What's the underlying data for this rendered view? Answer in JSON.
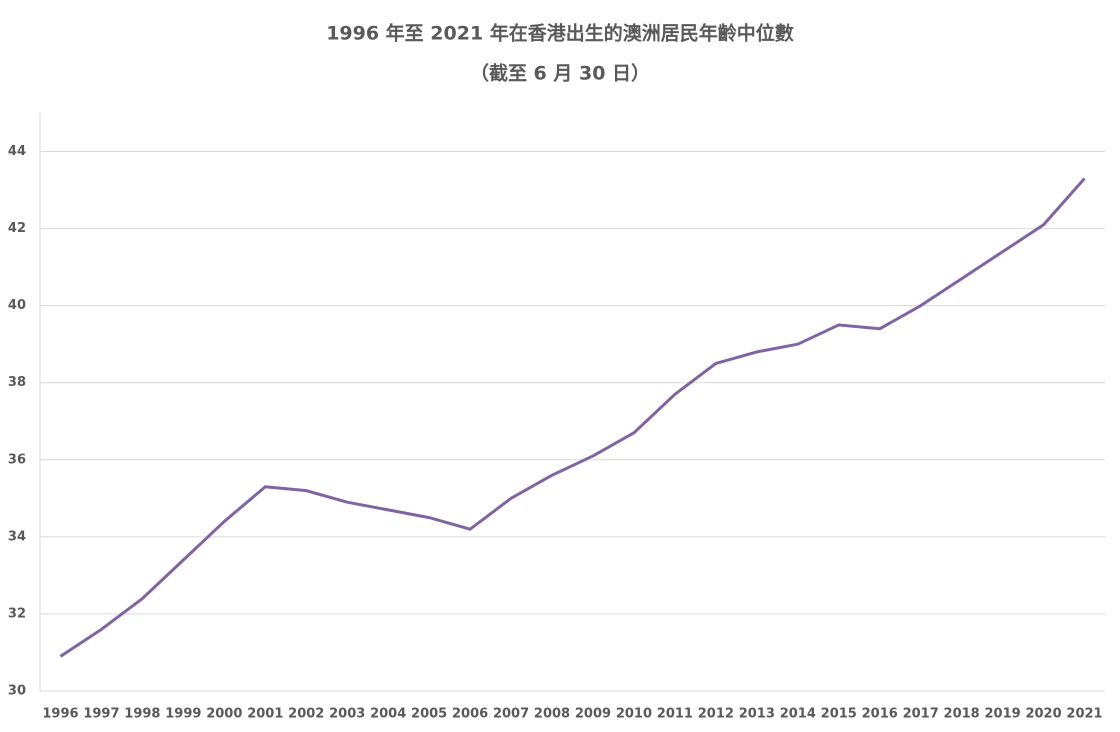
{
  "chart_data": {
    "type": "line",
    "title": "1996 年至 2021 年在香港出生的澳洲居民年齡中位數",
    "subtitle": "（截至 6 月 30 日）",
    "categories": [
      "1996",
      "1997",
      "1998",
      "1999",
      "2000",
      "2001",
      "2002",
      "2003",
      "2004",
      "2005",
      "2006",
      "2007",
      "2008",
      "2009",
      "2010",
      "2011",
      "2012",
      "2013",
      "2014",
      "2015",
      "2016",
      "2017",
      "2018",
      "2019",
      "2020",
      "2021"
    ],
    "values": [
      30.9,
      31.6,
      32.4,
      33.4,
      34.4,
      35.3,
      35.2,
      34.9,
      34.7,
      34.5,
      34.2,
      35.0,
      35.6,
      36.1,
      36.7,
      37.7,
      38.5,
      38.8,
      39.0,
      39.5,
      39.4,
      40.0,
      40.7,
      41.4,
      42.1,
      43.3
    ],
    "color": "#8064a2",
    "ylim": [
      30,
      45
    ],
    "yticks": [
      30,
      32,
      34,
      36,
      38,
      40,
      42,
      44
    ],
    "grid": true
  }
}
